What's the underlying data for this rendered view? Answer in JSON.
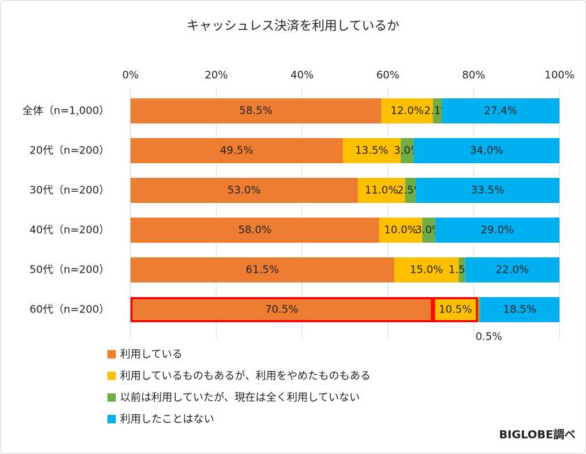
{
  "chart_data": {
    "type": "stacked-barh",
    "title": "キャッシュレス決済を利用しているか",
    "categories": [
      "全体（n=1,000）",
      "20代（n=200）",
      "30代（n=200）",
      "40代（n=200）",
      "50代（n=200）",
      "60代（n=200）"
    ],
    "series": [
      {
        "name": "利用している",
        "color": "#ed7d31",
        "values": [
          58.5,
          49.5,
          53.0,
          58.0,
          61.5,
          70.5
        ],
        "value_labels": [
          "58.5%",
          "49.5%",
          "53.0%",
          "58.0%",
          "61.5%",
          "70.5%"
        ]
      },
      {
        "name": "利用しているものもあるが、利用をやめたものもある",
        "color": "#ffc000",
        "values": [
          12.0,
          13.5,
          11.0,
          10.0,
          15.0,
          10.5
        ],
        "value_labels": [
          "12.0%",
          "13.5%",
          "11.0%",
          "10.0%",
          "15.0%",
          "10.5%"
        ]
      },
      {
        "name": "以前は利用していたが、現在は全く利用していない",
        "color": "#70ad47",
        "values": [
          2.1,
          3.0,
          2.5,
          3.0,
          1.5,
          0.5
        ],
        "value_labels": [
          "2.1%",
          "3.0%",
          "2.5%",
          "3.0%",
          "1.5%",
          "0.5%"
        ]
      },
      {
        "name": "利用したことはない",
        "color": "#00b0f0",
        "values": [
          27.4,
          34.0,
          33.5,
          29.0,
          22.0,
          18.5
        ],
        "value_labels": [
          "27.4%",
          "34.0%",
          "33.5%",
          "29.0%",
          "22.0%",
          "18.5%"
        ]
      }
    ],
    "xlim": [
      0,
      100
    ],
    "xticks": [
      {
        "value": 0,
        "label": "0%"
      },
      {
        "value": 20,
        "label": "20%"
      },
      {
        "value": 40,
        "label": "40%"
      },
      {
        "value": 60,
        "label": "60%"
      },
      {
        "value": 80,
        "label": "80%"
      },
      {
        "value": 100,
        "label": "100%"
      }
    ],
    "grid": true,
    "highlight": {
      "category_index": 5,
      "series_index": [
        0,
        1
      ],
      "color": "#ff0000"
    },
    "note": "BIGLOBE調べ"
  }
}
